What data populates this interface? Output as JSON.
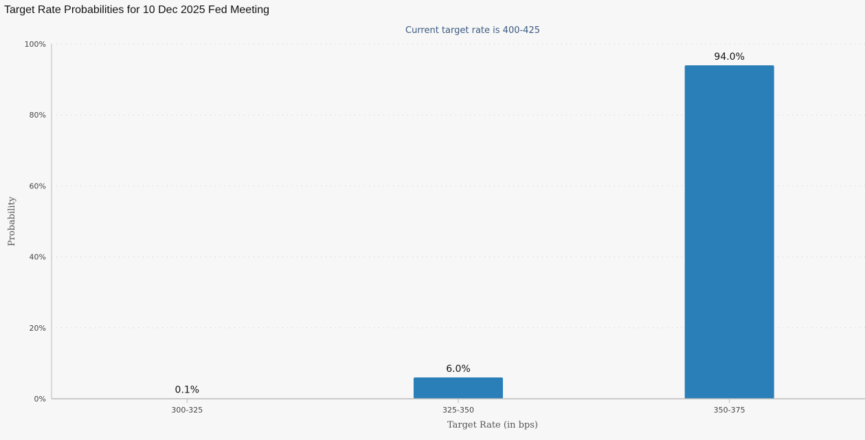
{
  "page_title": "Target Rate Probabilities for 10 Dec 2025 Fed Meeting",
  "colors": {
    "bar": "#2a7fb8",
    "gridline": "#cccccc",
    "axis_line": "#bbbbbb",
    "background": "#f7f7f7"
  },
  "chart_data": {
    "type": "bar",
    "title": "Target Rate Probabilities for 10 Dec 2025 Fed Meeting",
    "subtitle": "Current target rate is 400-425",
    "xlabel": "Target Rate (in bps)",
    "ylabel": "Probability",
    "categories": [
      "300-325",
      "325-350",
      "350-375"
    ],
    "values": [
      0.1,
      6.0,
      94.0
    ],
    "data_labels": [
      "0.1%",
      "6.0%",
      "94.0%"
    ],
    "ylim": [
      0,
      100
    ],
    "y_ticks": [
      0,
      20,
      40,
      60,
      80,
      100
    ],
    "y_tick_labels": [
      "0%",
      "20%",
      "40%",
      "60%",
      "80%",
      "100%"
    ],
    "grid": true,
    "legend": false
  }
}
